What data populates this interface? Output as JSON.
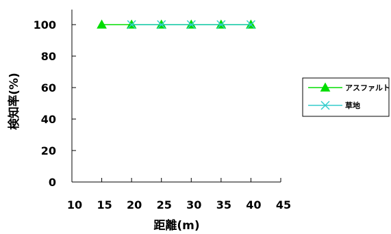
{
  "chart_data": {
    "type": "line",
    "title": "",
    "xlabel": "距離(m)",
    "ylabel": "検知率(%)",
    "x_ticks": [
      10,
      15,
      20,
      25,
      30,
      35,
      40,
      45
    ],
    "y_ticks": [
      0,
      20,
      40,
      60,
      80,
      100
    ],
    "xlim": [
      10,
      45
    ],
    "ylim": [
      0,
      100
    ],
    "grid": false,
    "legend_position": "right",
    "series": [
      {
        "name": "アスファルト",
        "color": "#00dd00",
        "marker": "triangle",
        "x": [
          15,
          20,
          25,
          30,
          35,
          40
        ],
        "y": [
          100,
          100,
          100,
          100,
          100,
          100
        ]
      },
      {
        "name": "草地",
        "color": "#33cccc",
        "marker": "x",
        "x": [
          20,
          25,
          30,
          35,
          40
        ],
        "y": [
          100,
          100,
          100,
          100,
          100
        ]
      }
    ]
  }
}
